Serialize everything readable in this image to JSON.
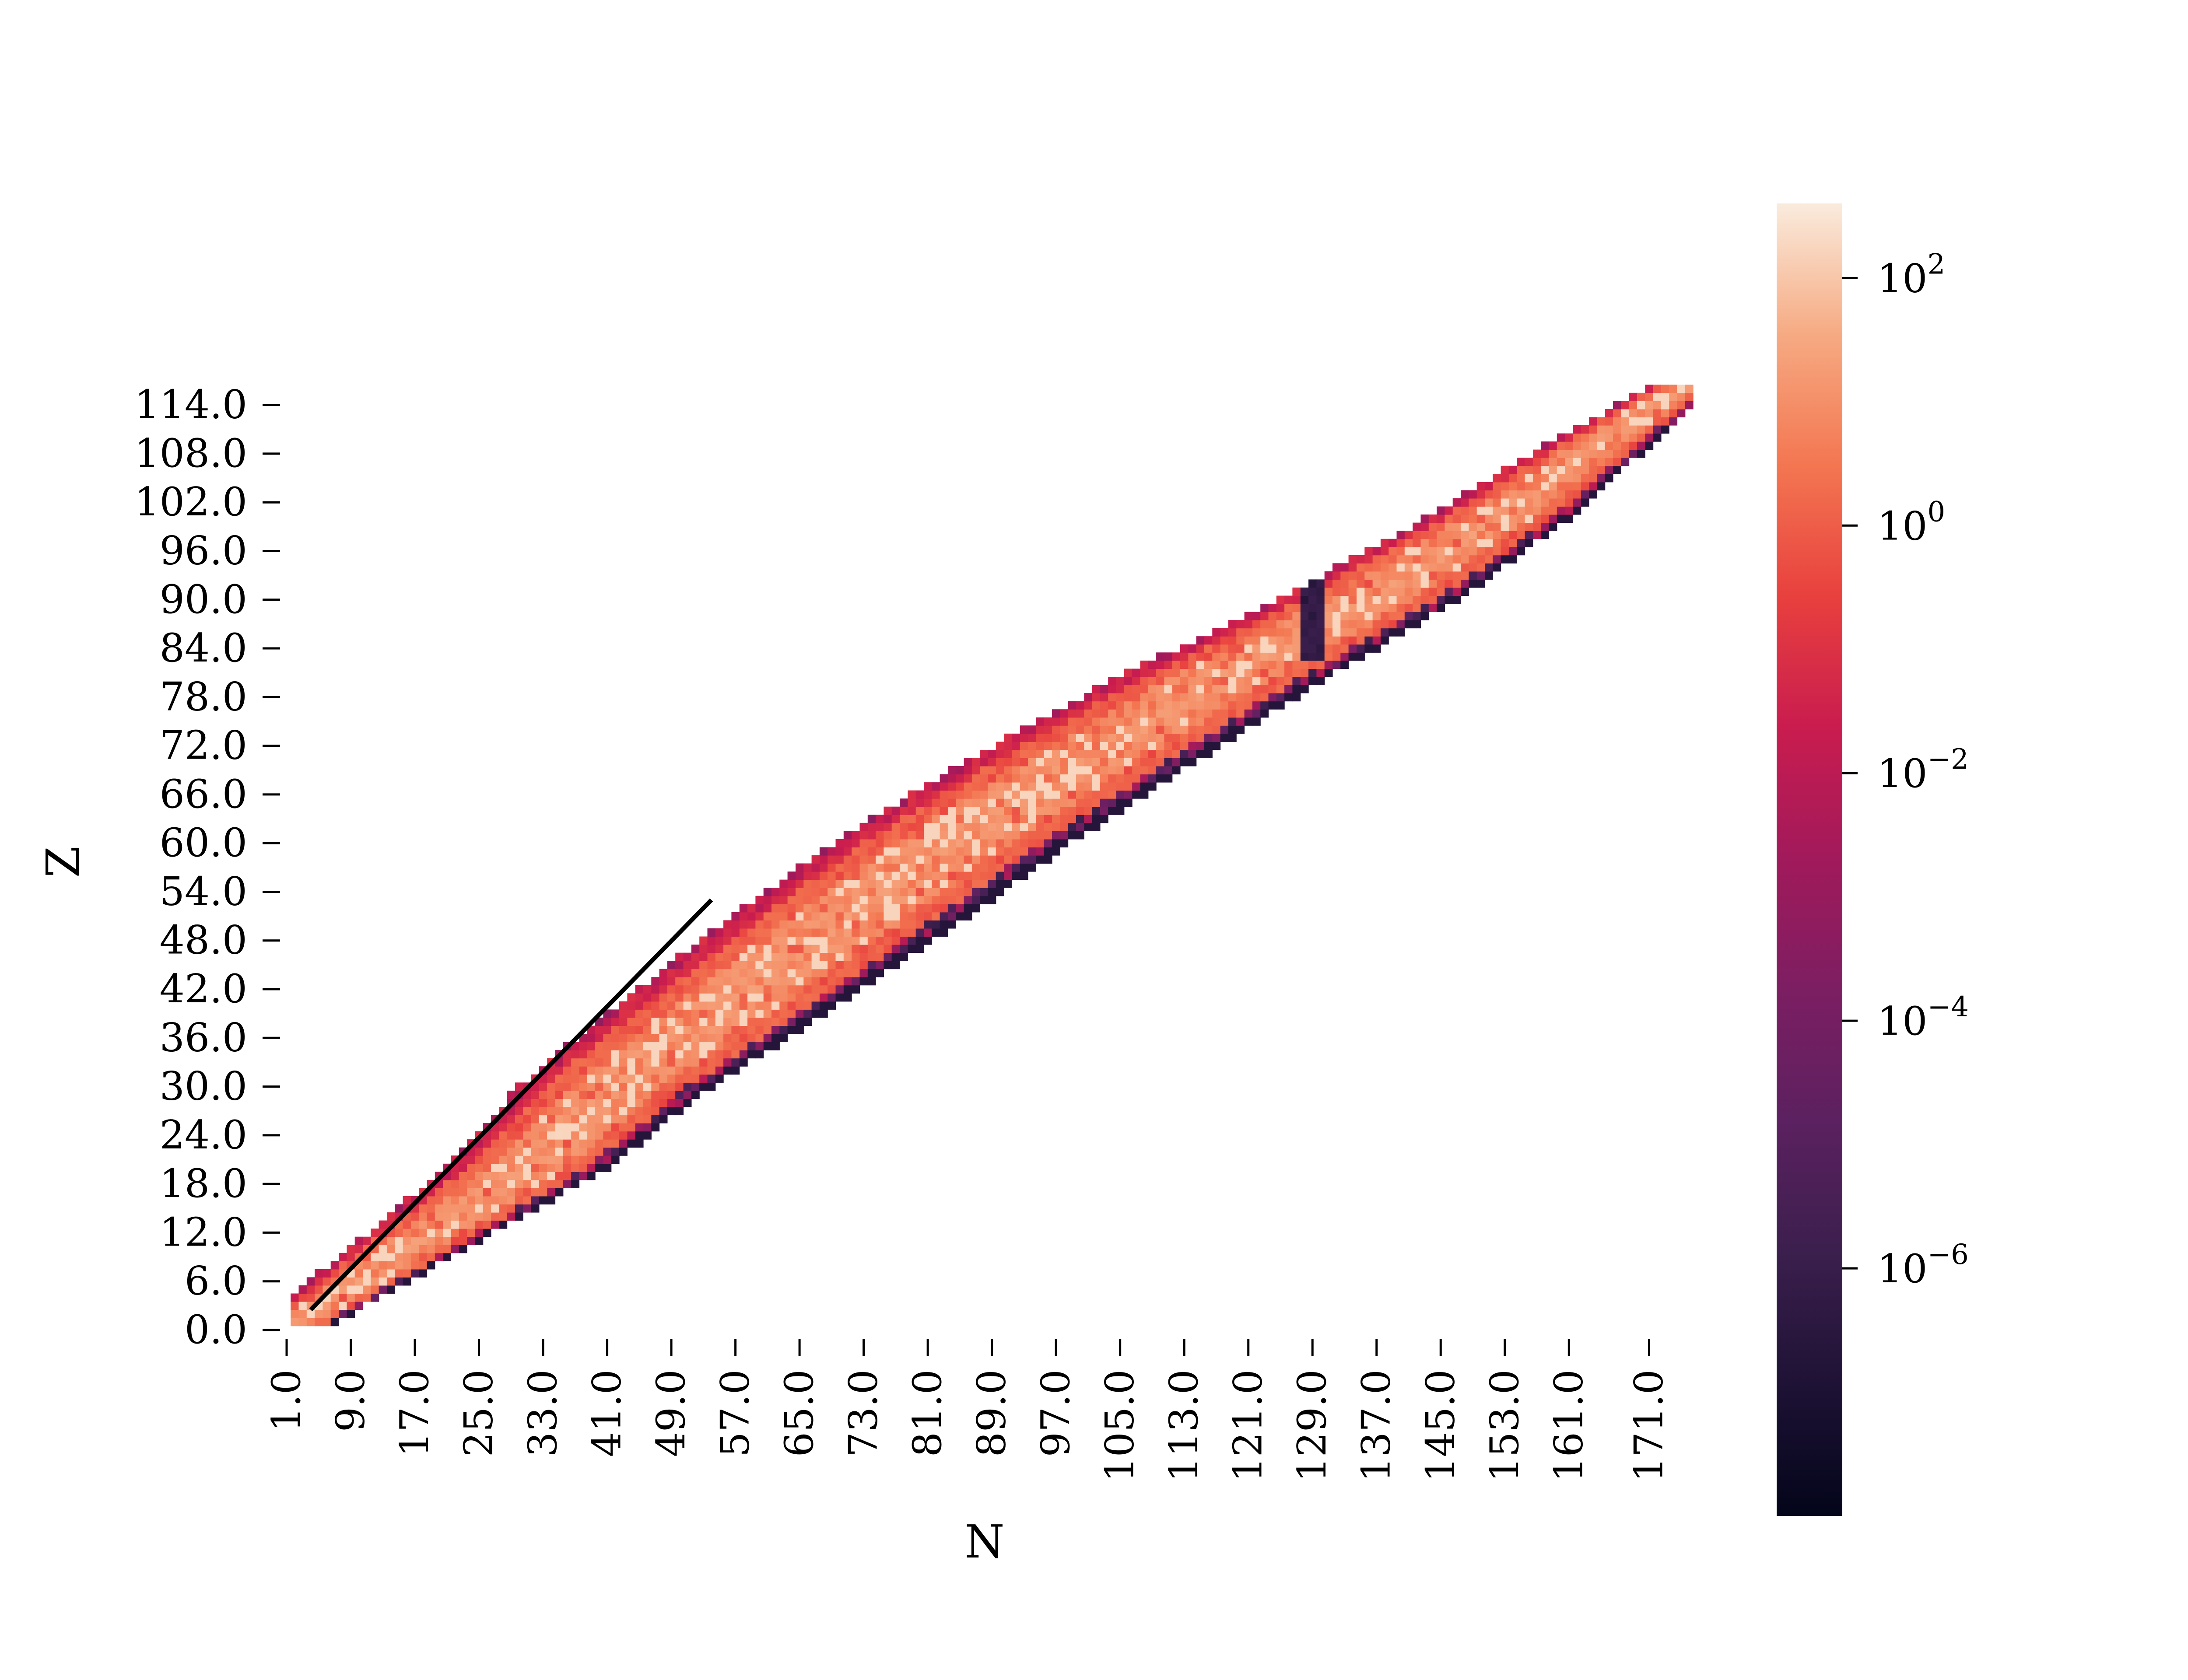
{
  "chart_data": {
    "type": "heatmap",
    "title": "",
    "xlabel": "N",
    "ylabel": "Z",
    "x_tick_labels": [
      "1.0",
      "9.0",
      "17.0",
      "25.0",
      "33.0",
      "41.0",
      "49.0",
      "57.0",
      "65.0",
      "73.0",
      "81.0",
      "89.0",
      "97.0",
      "105.0",
      "113.0",
      "121.0",
      "129.0",
      "137.0",
      "145.0",
      "153.0",
      "161.0",
      "171.0"
    ],
    "y_tick_labels": [
      "0.0",
      "6.0",
      "12.0",
      "18.0",
      "24.0",
      "30.0",
      "36.0",
      "42.0",
      "48.0",
      "54.0",
      "60.0",
      "66.0",
      "72.0",
      "78.0",
      "84.0",
      "90.0",
      "96.0",
      "102.0",
      "108.0",
      "114.0"
    ],
    "xlim": [
      1,
      176
    ],
    "ylim": [
      0,
      117
    ],
    "colorbar": {
      "scale": "log",
      "range": [
        1e-08,
        400
      ],
      "tick_labels": [
        "10^2",
        "10^0",
        "10^-2",
        "10^-4",
        "10^-6"
      ],
      "tick_values": [
        100,
        1,
        0.01,
        0.0001,
        1e-06
      ],
      "colormap": "rocket"
    },
    "band_description": "Z vs N nuclide abundance band; values along a diagonal band from (N≈1,Z≈0) to (N≈175,Z≈116); high (~1–100) in band center, decreasing toward edges, very low (~1e-7) along lower/right edge and near N≈129, Z≈84–92",
    "band_centerline": [
      {
        "z": 2,
        "n": 4
      },
      {
        "z": 10,
        "n": 16
      },
      {
        "z": 20,
        "n": 31
      },
      {
        "z": 30,
        "n": 42
      },
      {
        "z": 40,
        "n": 56
      },
      {
        "z": 50,
        "n": 70
      },
      {
        "z": 60,
        "n": 84
      },
      {
        "z": 70,
        "n": 100
      },
      {
        "z": 80,
        "n": 117
      },
      {
        "z": 90,
        "n": 136
      },
      {
        "z": 100,
        "n": 152
      },
      {
        "z": 110,
        "n": 166
      },
      {
        "z": 116,
        "n": 175
      }
    ],
    "line": {
      "points": [
        {
          "n": 4,
          "z": 2.5
        },
        {
          "n": 54,
          "z": 53
        }
      ],
      "color": "#000000"
    }
  }
}
